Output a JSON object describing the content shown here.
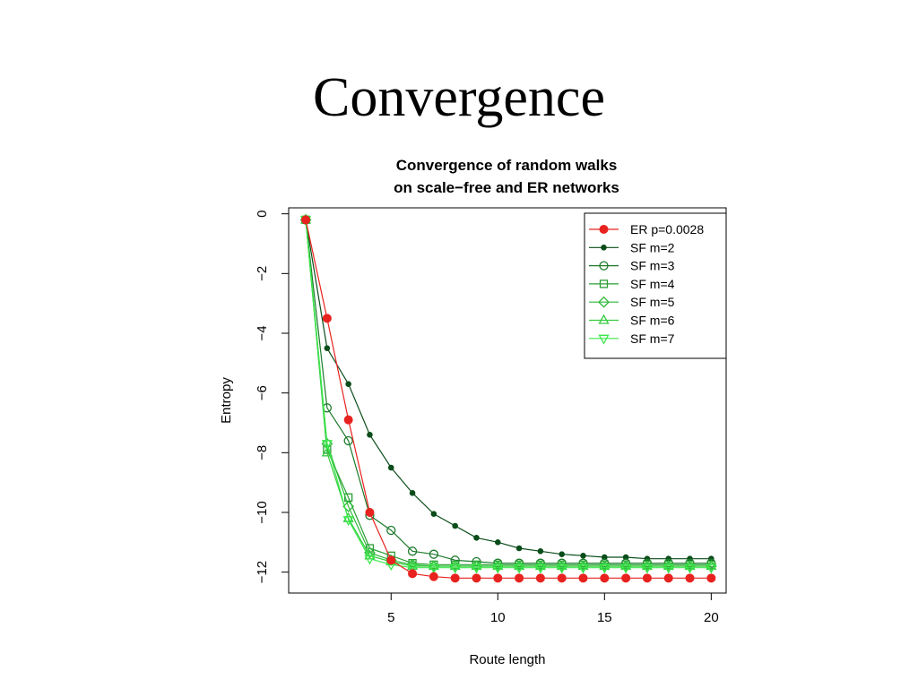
{
  "slide": {
    "title": "Convergence"
  },
  "chart_data": {
    "type": "line",
    "title": "Convergence of random walks",
    "subtitle": "on scale−free and ER networks",
    "xlabel": "Route length",
    "ylabel": "Entropy",
    "xlim": [
      0.2,
      20.7
    ],
    "ylim": [
      -12.7,
      0.2
    ],
    "x_ticks": [
      "5",
      "10",
      "15",
      "20"
    ],
    "y_ticks": [
      "0",
      "−2",
      "−4",
      "−6",
      "−8",
      "−10",
      "−12"
    ],
    "legend_position": "top-right",
    "grid": false,
    "series": [
      {
        "name": "ER p=0.0028",
        "color": "#e8231f",
        "marker": "filled-circle",
        "x": [
          1,
          2,
          3,
          4,
          5,
          6,
          7,
          8,
          9,
          10,
          11,
          12,
          13,
          14,
          15,
          16,
          17,
          18,
          19,
          20
        ],
        "y": [
          -0.2,
          -3.5,
          -6.9,
          -10.0,
          -11.6,
          -12.05,
          -12.15,
          -12.2,
          -12.2,
          -12.2,
          -12.2,
          -12.2,
          -12.2,
          -12.2,
          -12.2,
          -12.2,
          -12.2,
          -12.2,
          -12.2,
          -12.2
        ]
      },
      {
        "name": "SF m=2",
        "color": "#0b4d1a",
        "marker": "small-dot",
        "x": [
          1,
          2,
          3,
          4,
          5,
          6,
          7,
          8,
          9,
          10,
          11,
          12,
          13,
          14,
          15,
          16,
          17,
          18,
          19,
          20
        ],
        "y": [
          -0.2,
          -4.5,
          -5.7,
          -7.4,
          -8.5,
          -9.35,
          -10.05,
          -10.45,
          -10.85,
          -11.0,
          -11.2,
          -11.3,
          -11.4,
          -11.45,
          -11.5,
          -11.5,
          -11.55,
          -11.55,
          -11.55,
          -11.55
        ]
      },
      {
        "name": "SF m=3",
        "color": "#1d7a2c",
        "marker": "open-circle",
        "x": [
          1,
          2,
          3,
          4,
          5,
          6,
          7,
          8,
          9,
          10,
          11,
          12,
          13,
          14,
          15,
          16,
          17,
          18,
          19,
          20
        ],
        "y": [
          -0.2,
          -6.5,
          -7.6,
          -10.1,
          -10.6,
          -11.3,
          -11.4,
          -11.6,
          -11.65,
          -11.7,
          -11.7,
          -11.7,
          -11.7,
          -11.7,
          -11.7,
          -11.7,
          -11.7,
          -11.7,
          -11.7,
          -11.7
        ]
      },
      {
        "name": "SF m=4",
        "color": "#2a9e35",
        "marker": "open-square",
        "x": [
          1,
          2,
          3,
          4,
          5,
          6,
          7,
          8,
          9,
          10,
          11,
          12,
          13,
          14,
          15,
          16,
          17,
          18,
          19,
          20
        ],
        "y": [
          -0.2,
          -7.9,
          -9.5,
          -11.2,
          -11.45,
          -11.7,
          -11.75,
          -11.75,
          -11.75,
          -11.75,
          -11.75,
          -11.75,
          -11.75,
          -11.75,
          -11.75,
          -11.75,
          -11.75,
          -11.75,
          -11.75,
          -11.75
        ]
      },
      {
        "name": "SF m=5",
        "color": "#2fb83a",
        "marker": "open-diamond",
        "x": [
          1,
          2,
          3,
          4,
          5,
          6,
          7,
          8,
          9,
          10,
          11,
          12,
          13,
          14,
          15,
          16,
          17,
          18,
          19,
          20
        ],
        "y": [
          -0.2,
          -7.7,
          -9.8,
          -11.35,
          -11.6,
          -11.75,
          -11.8,
          -11.8,
          -11.8,
          -11.8,
          -11.8,
          -11.8,
          -11.8,
          -11.8,
          -11.8,
          -11.8,
          -11.8,
          -11.8,
          -11.8,
          -11.8
        ]
      },
      {
        "name": "SF m=6",
        "color": "#35cc40",
        "marker": "open-triangle-up",
        "x": [
          1,
          2,
          3,
          4,
          5,
          6,
          7,
          8,
          9,
          10,
          11,
          12,
          13,
          14,
          15,
          16,
          17,
          18,
          19,
          20
        ],
        "y": [
          -0.2,
          -8.0,
          -10.2,
          -11.45,
          -11.65,
          -11.8,
          -11.8,
          -11.8,
          -11.8,
          -11.8,
          -11.8,
          -11.8,
          -11.8,
          -11.8,
          -11.8,
          -11.8,
          -11.8,
          -11.8,
          -11.8,
          -11.8
        ]
      },
      {
        "name": "SF m=7",
        "color": "#3be84a",
        "marker": "open-triangle-down",
        "x": [
          1,
          2,
          3,
          4,
          5,
          6,
          7,
          8,
          9,
          10,
          11,
          12,
          13,
          14,
          15,
          16,
          17,
          18,
          19,
          20
        ],
        "y": [
          -0.2,
          -7.7,
          -10.25,
          -11.55,
          -11.75,
          -11.85,
          -11.85,
          -11.85,
          -11.85,
          -11.85,
          -11.85,
          -11.85,
          -11.85,
          -11.85,
          -11.85,
          -11.85,
          -11.85,
          -11.85,
          -11.85,
          -11.85
        ]
      }
    ]
  }
}
